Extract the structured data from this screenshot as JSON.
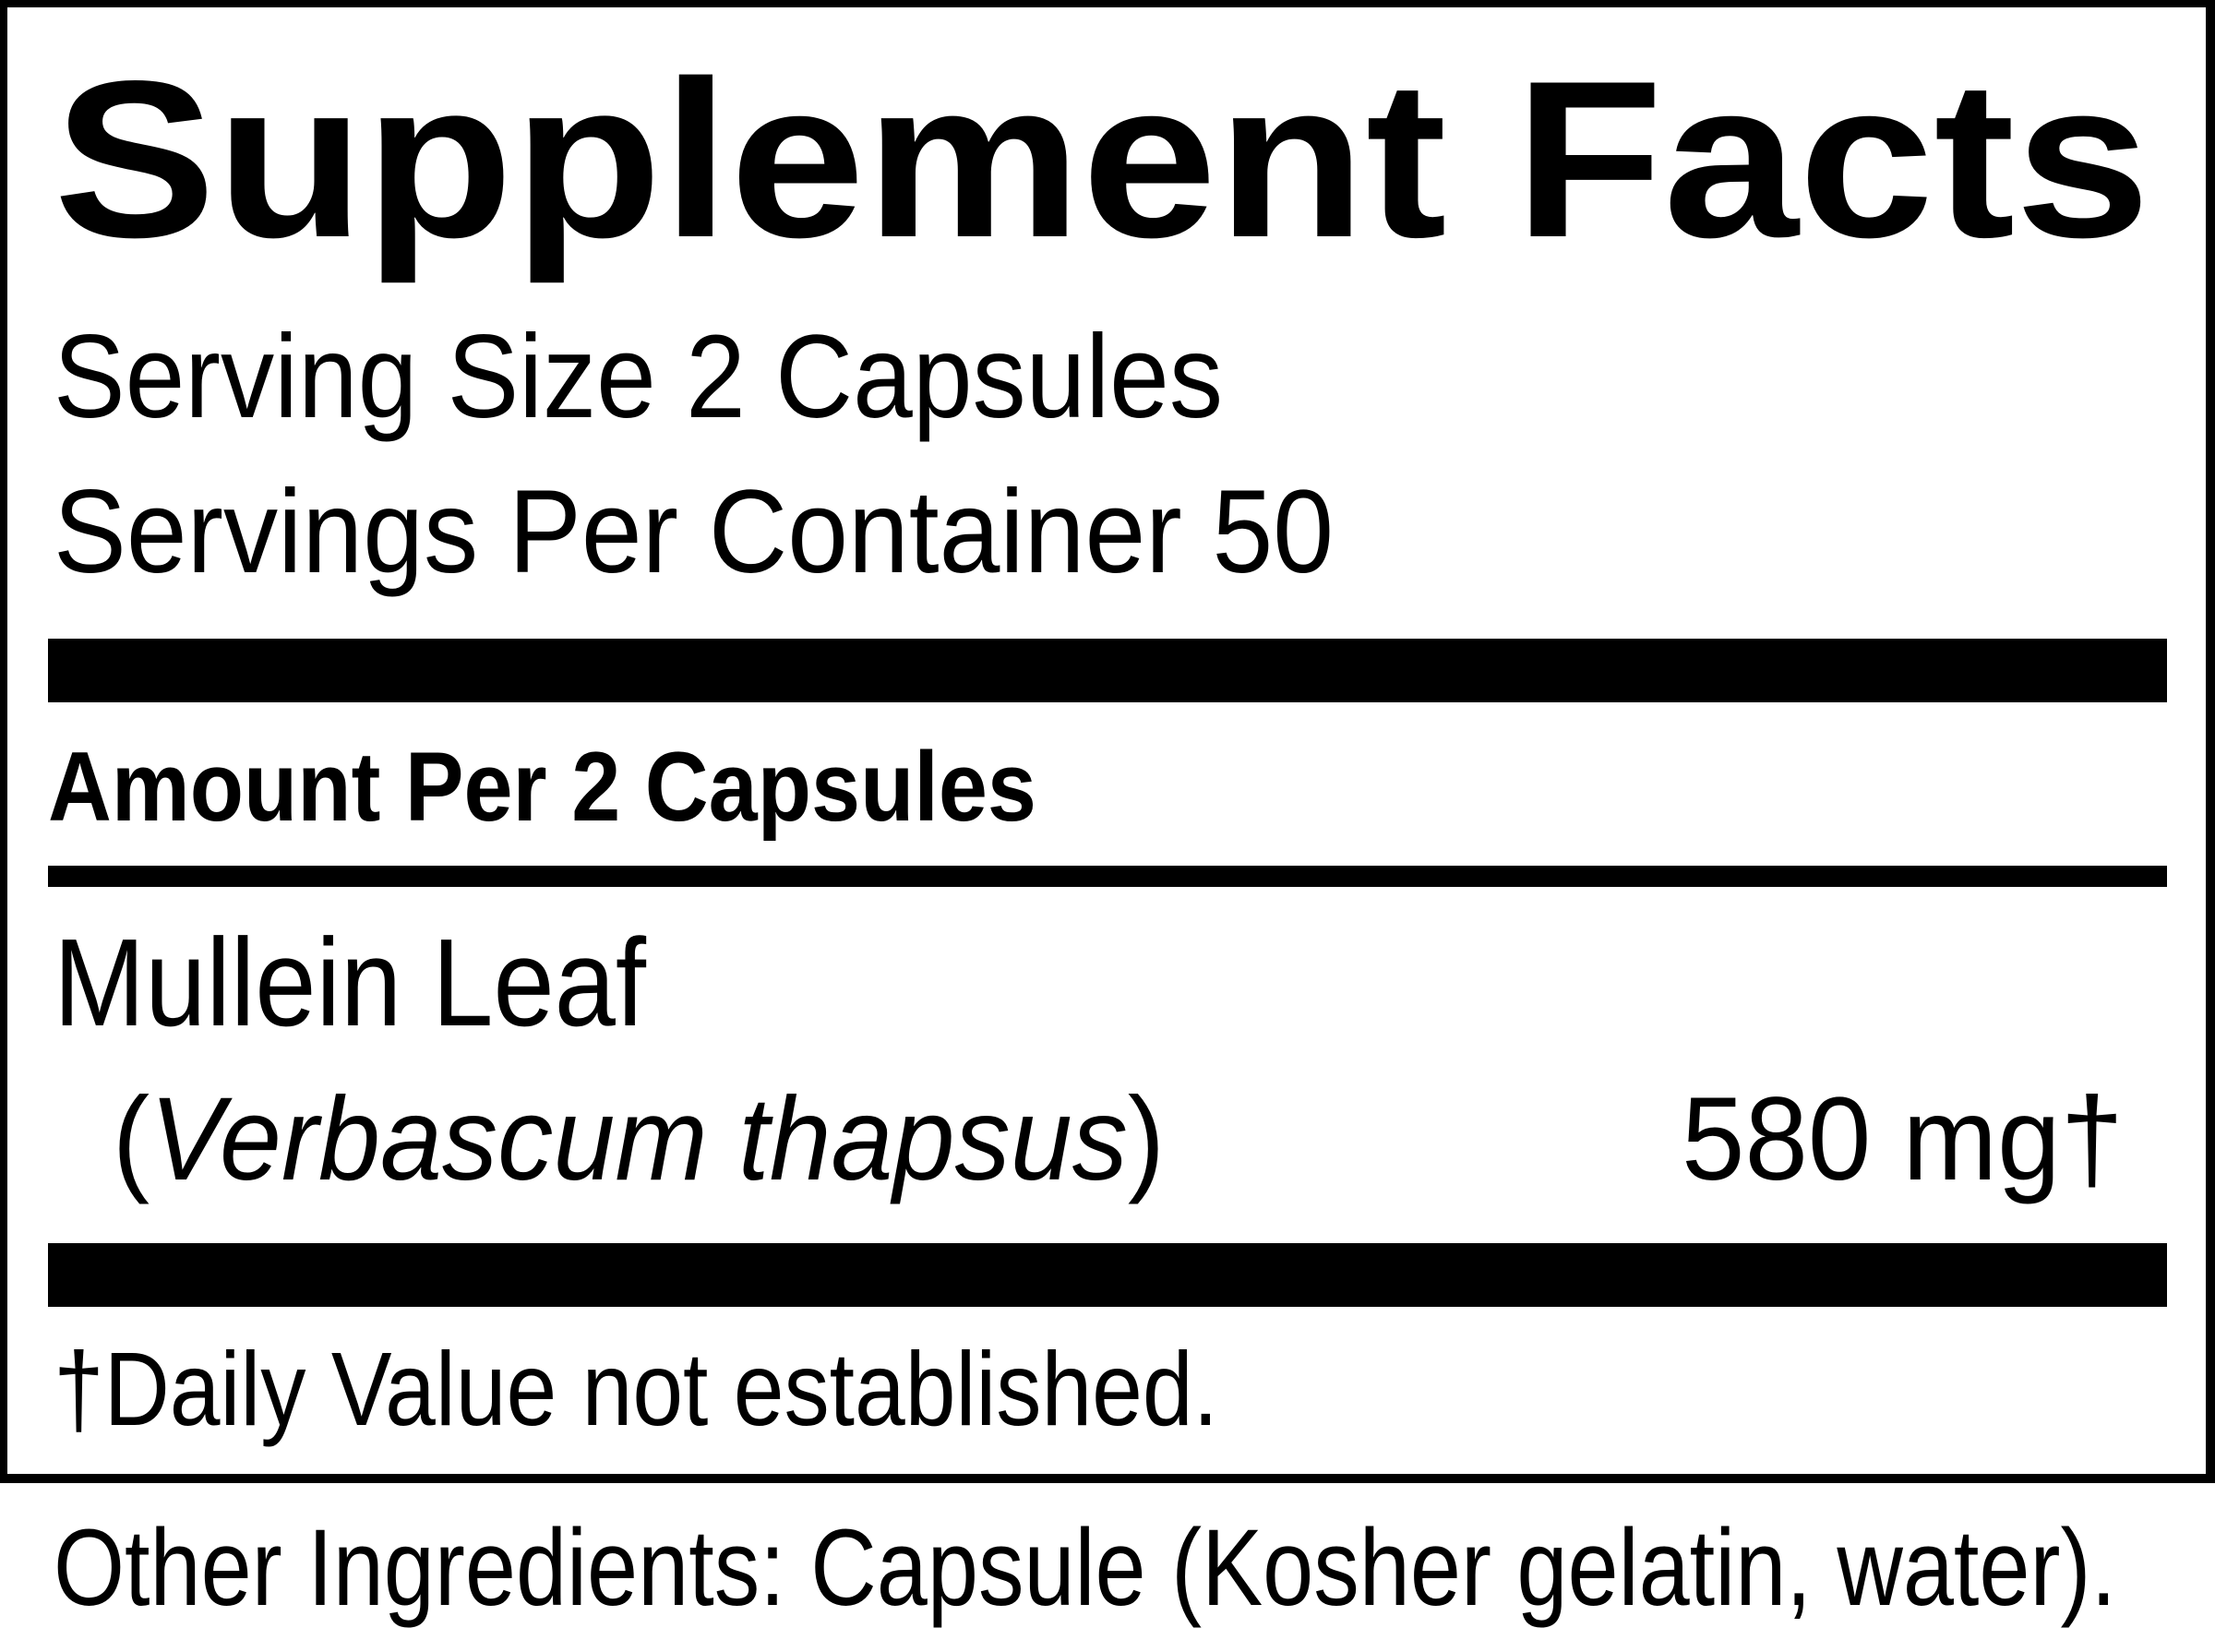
{
  "label": {
    "title": "Supplement Facts",
    "serving_size": "Serving Size 2 Capsules",
    "servings_per_container": "Servings Per Container 50",
    "amount_per": "Amount Per 2 Capsules",
    "ingredients": [
      {
        "name": "Mullein Leaf",
        "latin_open": "(",
        "latin": "Verbascum thapsus",
        "latin_close": ")",
        "amount": "580 mg†"
      }
    ],
    "footnote": "†Daily Value not established.",
    "other_ingredients": "Other Ingredients: Capsule (Kosher gelatin, water)."
  }
}
